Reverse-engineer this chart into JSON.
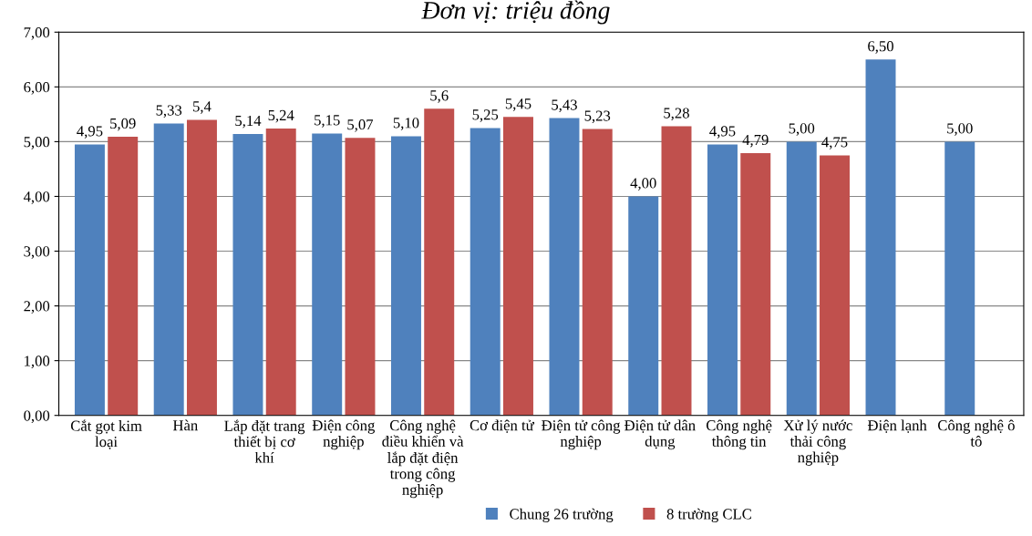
{
  "chart_data": {
    "type": "bar",
    "title": "Đơn vị: triệu đồng",
    "categories": [
      "Cắt gọt kim loại",
      "Hàn",
      "Lắp đặt trang thiết bị cơ khí",
      "Điện công nghiệp",
      "Công nghệ điều khiển và lắp đặt điện trong công nghiệp",
      "Cơ điện tử",
      "Điện tử công nghiệp",
      "Điện tử dân dụng",
      "Công nghệ thông tin",
      "Xử lý nước thải công nghiệp",
      "Điện lạnh",
      "Công nghệ ô tô"
    ],
    "series": [
      {
        "name": "Chung 26 trường",
        "color": "#4f81bd",
        "values": [
          4.95,
          5.33,
          5.14,
          5.15,
          5.1,
          5.25,
          5.43,
          4.0,
          4.95,
          5.0,
          6.5,
          5.0
        ],
        "value_labels": [
          "4,95",
          "5,33",
          "5,14",
          "5,15",
          "5,10",
          "5,25",
          "5,43",
          "4,00",
          "4,95",
          "5,00",
          "6,50",
          "5,00"
        ]
      },
      {
        "name": "8 trường CLC",
        "color": "#c0504d",
        "values": [
          5.09,
          5.4,
          5.24,
          5.07,
          5.6,
          5.45,
          5.23,
          5.28,
          4.79,
          4.75,
          null,
          null
        ],
        "value_labels": [
          "5,09",
          "5,4",
          "5,24",
          "5,07",
          "5,6",
          "5,45",
          "5,23",
          "5,28",
          "4,79",
          "4,75",
          null,
          null
        ]
      }
    ],
    "ylim": [
      0,
      7
    ],
    "yticks": [
      {
        "value": 0,
        "label": "0,00"
      },
      {
        "value": 1,
        "label": "1,00"
      },
      {
        "value": 2,
        "label": "2,00"
      },
      {
        "value": 3,
        "label": "3,00"
      },
      {
        "value": 4,
        "label": "4,00"
      },
      {
        "value": 5,
        "label": "5,00"
      },
      {
        "value": 6,
        "label": "6,00"
      },
      {
        "value": 7,
        "label": "7,00"
      }
    ],
    "grid": "y",
    "legend": "bottom"
  }
}
